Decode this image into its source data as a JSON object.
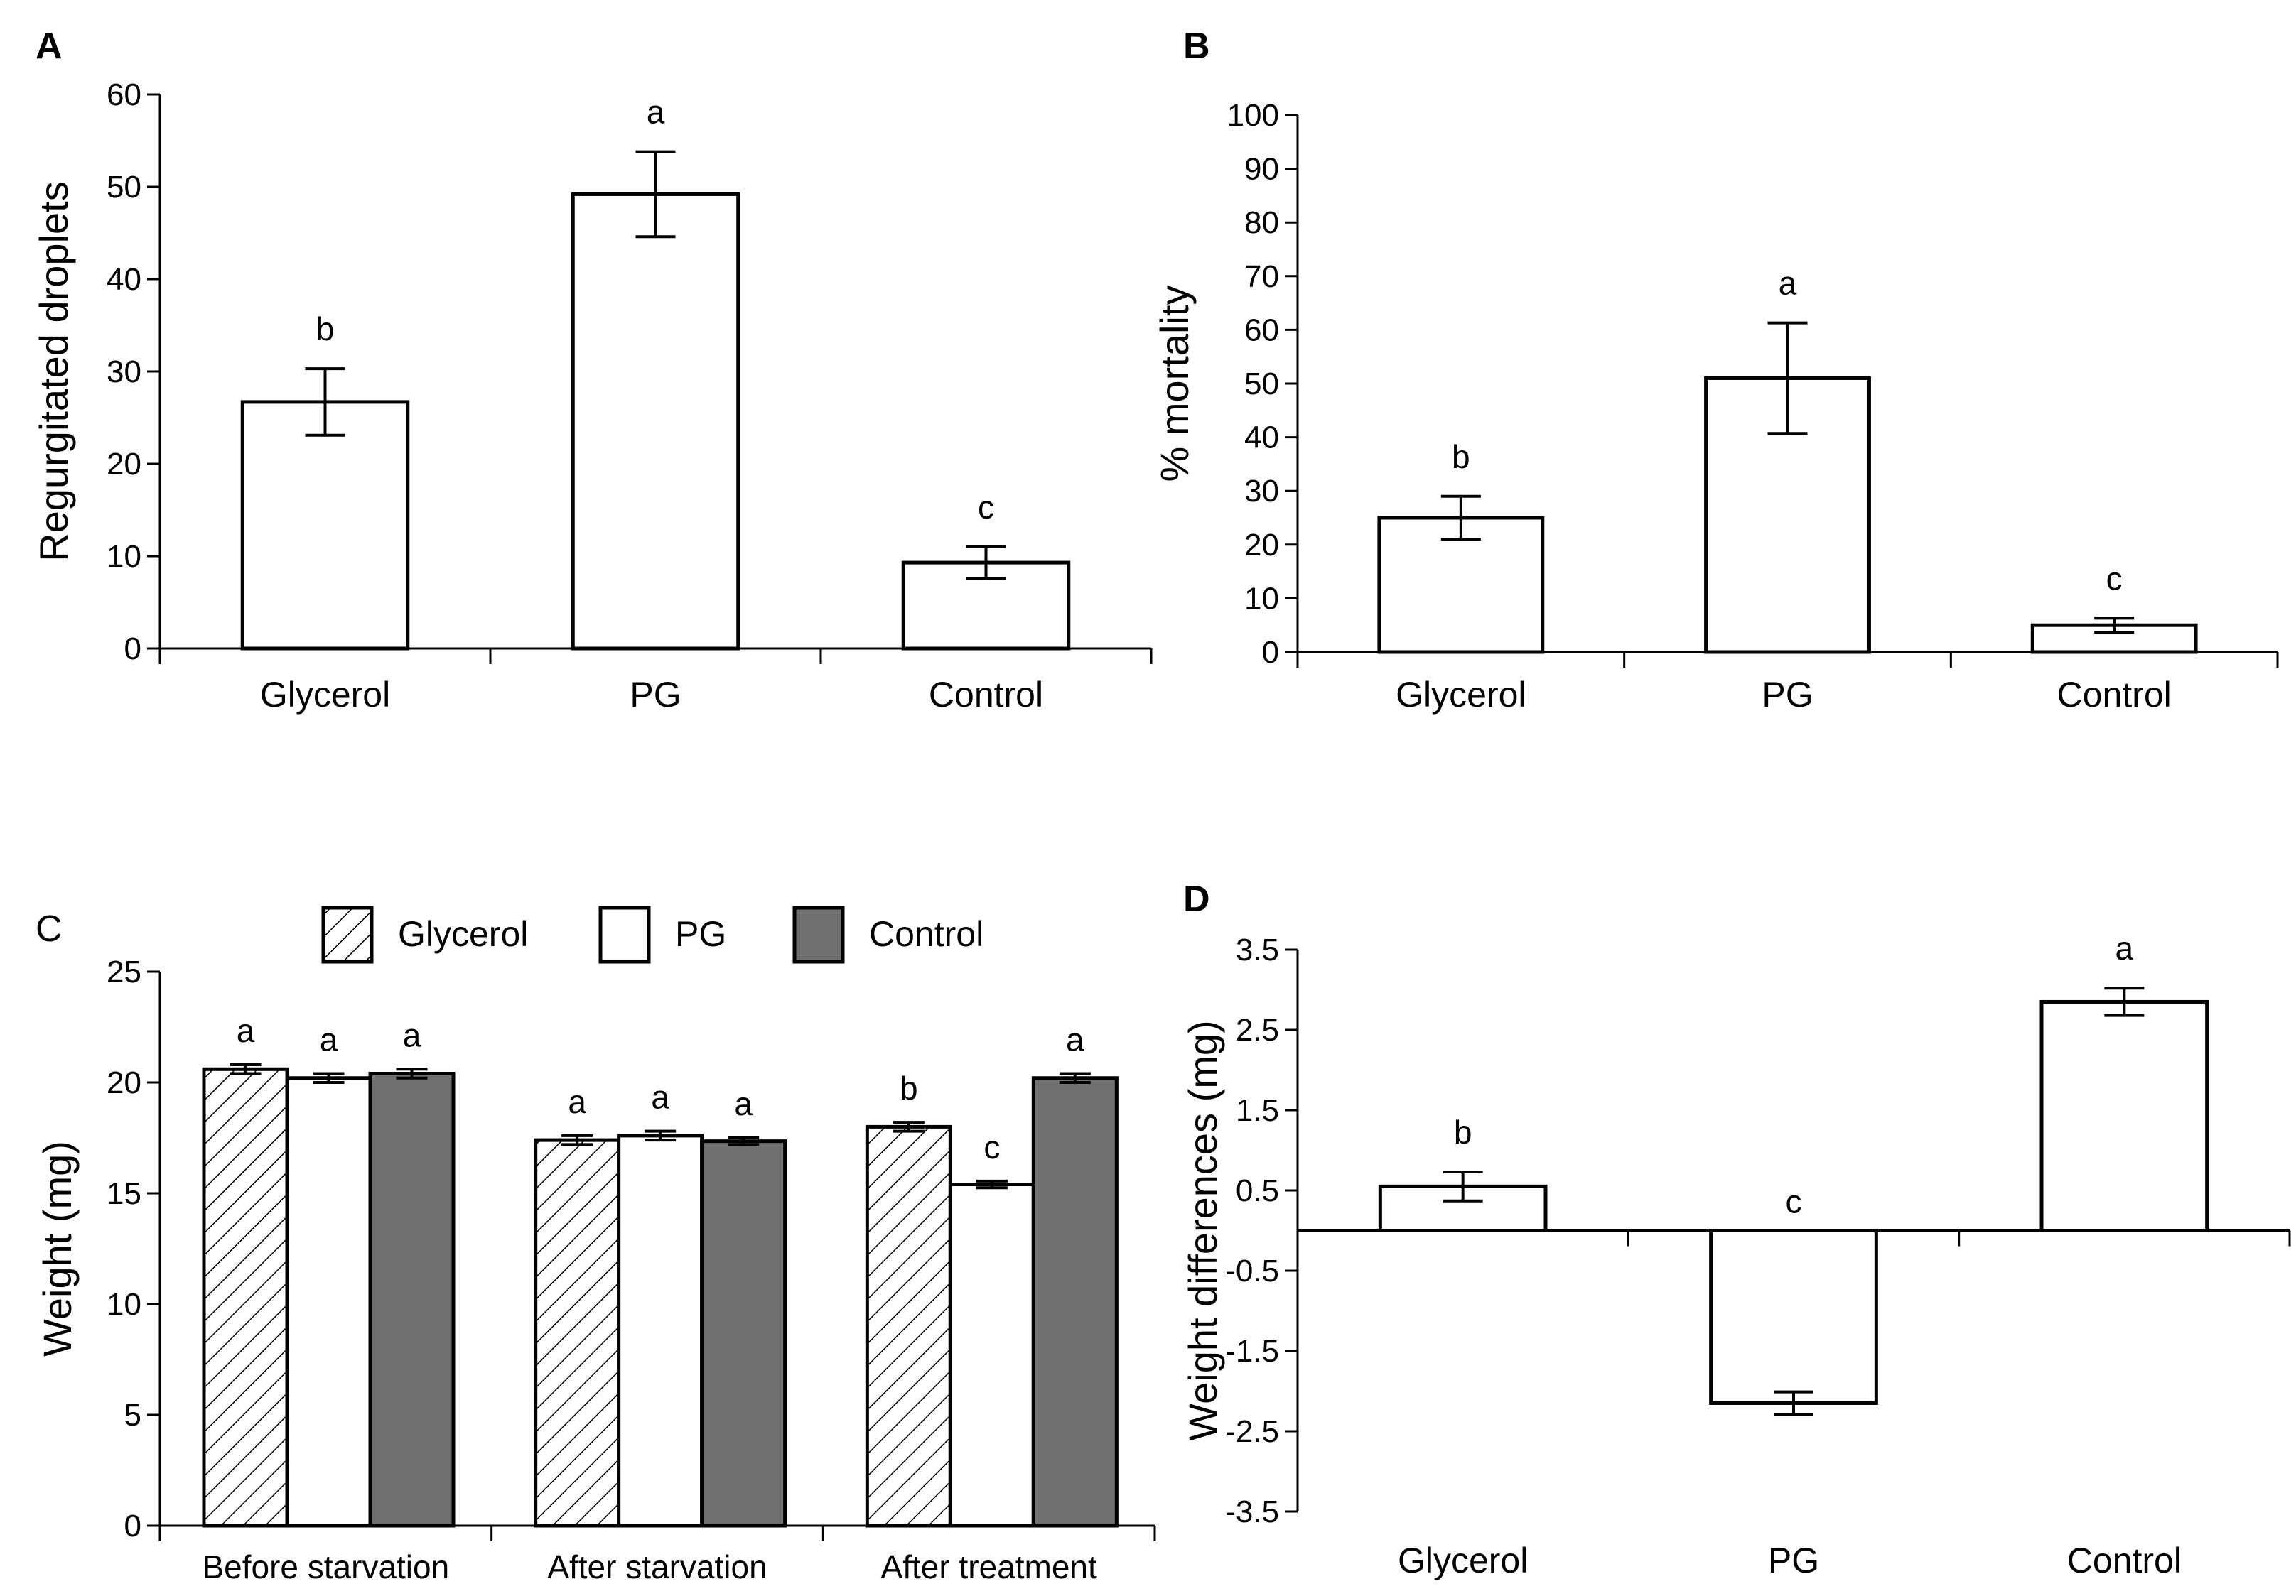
{
  "chart_data": [
    {
      "panel": "A",
      "type": "bar",
      "ylabel": "Regurgitated droplets",
      "ylim": [
        0,
        60
      ],
      "yticks": [
        0,
        10,
        20,
        30,
        40,
        50,
        60
      ],
      "categories": [
        "Glycerol",
        "PG",
        "Control"
      ],
      "values": [
        26.7,
        49.2,
        9.3
      ],
      "errors": [
        3.6,
        4.6,
        1.7
      ],
      "letters": [
        "b",
        "a",
        "c"
      ]
    },
    {
      "panel": "B",
      "type": "bar",
      "ylabel": "% mortality",
      "ylim": [
        0,
        100
      ],
      "yticks": [
        0,
        10,
        20,
        30,
        40,
        50,
        60,
        70,
        80,
        90,
        100
      ],
      "categories": [
        "Glycerol",
        "PG",
        "Control"
      ],
      "values": [
        25.0,
        51.0,
        5.0
      ],
      "errors": [
        4.0,
        10.3,
        1.3
      ],
      "letters": [
        "b",
        "a",
        "c"
      ]
    },
    {
      "panel": "C",
      "type": "bar",
      "ylabel": "Weight (mg)",
      "ylim": [
        0,
        25
      ],
      "yticks": [
        0,
        5,
        10,
        15,
        20,
        25
      ],
      "categories": [
        "Before starvation",
        "After starvation",
        "After treatment"
      ],
      "series": [
        {
          "name": "Glycerol",
          "values": [
            20.6,
            17.4,
            18.0
          ],
          "errors": [
            0.2,
            0.2,
            0.2
          ],
          "letters": [
            "a",
            "a",
            "b"
          ],
          "fill": "hatch"
        },
        {
          "name": "PG",
          "values": [
            20.2,
            17.6,
            15.4
          ],
          "errors": [
            0.2,
            0.2,
            0.15
          ],
          "letters": [
            "a",
            "a",
            "c"
          ],
          "fill": "#ffffff"
        },
        {
          "name": "Control",
          "values": [
            20.4,
            17.35,
            20.2
          ],
          "errors": [
            0.2,
            0.15,
            0.2
          ],
          "letters": [
            "a",
            "a",
            "a"
          ],
          "fill": "#707070"
        }
      ],
      "legend_position": "top"
    },
    {
      "panel": "D",
      "type": "bar",
      "ylabel": "Weight differences (mg)",
      "ylim": [
        -3.5,
        3.5
      ],
      "yticks": [
        3.5,
        2.5,
        1.5,
        0.5,
        -0.5,
        -1.5,
        -2.5,
        -3.5
      ],
      "ytick_labels": [
        "3.5",
        "2.5",
        "1.5",
        "0.5",
        "-0.5",
        "-1.5",
        "-2.5",
        "-3.5"
      ],
      "categories": [
        "Glycerol",
        "PG",
        "Control"
      ],
      "values": [
        0.55,
        -2.15,
        2.85
      ],
      "errors": [
        0.18,
        0.14,
        0.17
      ],
      "letters": [
        "b",
        "c",
        "a"
      ]
    }
  ],
  "panel_labels": [
    "A",
    "B",
    "C",
    "D"
  ],
  "colors": {
    "control_fill": "#707070",
    "bar_outline": "#000000",
    "background": "#ffffff"
  }
}
